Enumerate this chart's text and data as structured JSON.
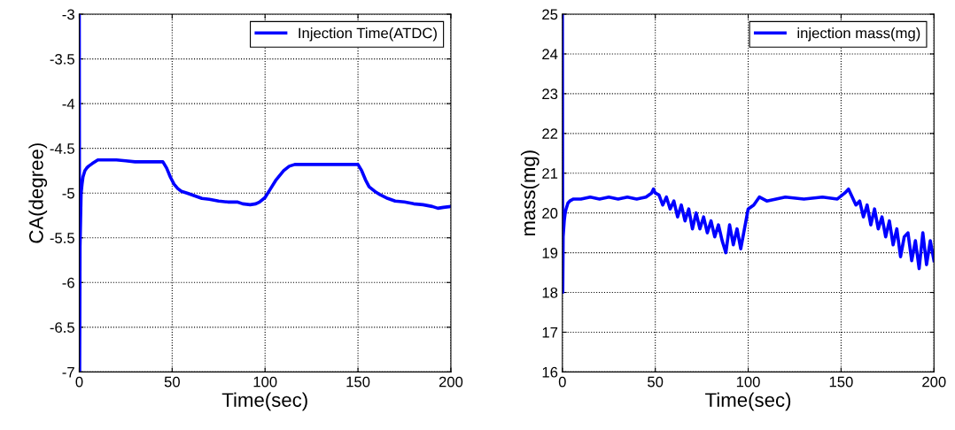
{
  "chart_data": [
    {
      "type": "line",
      "xlabel": "Time(sec)",
      "ylabel": "CA(degree)",
      "xlim": [
        0,
        200
      ],
      "xticks": [
        0,
        50,
        100,
        150,
        200
      ],
      "ylim": [
        -7,
        -3
      ],
      "yticks": [
        -7,
        -6.5,
        -6,
        -5.5,
        -5,
        -4.5,
        -4,
        -3.5,
        -3
      ],
      "grid": true,
      "legend": "top right",
      "series": [
        {
          "name": "Injection Time(ATDC)",
          "color": "#0000ff",
          "x": [
            0,
            0.2,
            0.4,
            0.7,
            1,
            1.5,
            2,
            3,
            4,
            5,
            7,
            10,
            15,
            20,
            25,
            30,
            35,
            40,
            45,
            47,
            49,
            51,
            53,
            55,
            58,
            62,
            66,
            70,
            75,
            80,
            85,
            88,
            92,
            95,
            97,
            100,
            103,
            106,
            110,
            113,
            116,
            120,
            130,
            140,
            150,
            152,
            154,
            156,
            159,
            162,
            166,
            170,
            175,
            180,
            185,
            190,
            193,
            196,
            200
          ],
          "values": [
            -3,
            -7,
            -5.6,
            -5.3,
            -5.0,
            -4.9,
            -4.82,
            -4.75,
            -4.72,
            -4.7,
            -4.67,
            -4.63,
            -4.63,
            -4.63,
            -4.64,
            -4.65,
            -4.65,
            -4.65,
            -4.65,
            -4.72,
            -4.82,
            -4.9,
            -4.95,
            -4.98,
            -5.0,
            -5.03,
            -5.06,
            -5.07,
            -5.09,
            -5.1,
            -5.1,
            -5.12,
            -5.13,
            -5.12,
            -5.1,
            -5.05,
            -4.95,
            -4.85,
            -4.75,
            -4.7,
            -4.68,
            -4.68,
            -4.68,
            -4.68,
            -4.68,
            -4.75,
            -4.85,
            -4.93,
            -4.98,
            -5.02,
            -5.06,
            -5.09,
            -5.1,
            -5.12,
            -5.13,
            -5.15,
            -5.17,
            -5.16,
            -5.15
          ]
        }
      ]
    },
    {
      "type": "line",
      "xlabel": "Time(sec)",
      "ylabel": "mass(mg)",
      "xlim": [
        0,
        200
      ],
      "xticks": [
        0,
        50,
        100,
        150,
        200
      ],
      "ylim": [
        16,
        25
      ],
      "yticks": [
        16,
        17,
        18,
        19,
        20,
        21,
        22,
        23,
        24,
        25
      ],
      "grid": true,
      "legend": "top right",
      "series": [
        {
          "name": "injection mass(mg)",
          "color": "#0000ff",
          "x": [
            0,
            0.2,
            0.4,
            0.7,
            1,
            1.5,
            2,
            3,
            4,
            6,
            10,
            15,
            20,
            25,
            30,
            35,
            40,
            45,
            48,
            49,
            50,
            52,
            54,
            56,
            58,
            60,
            62,
            64,
            66,
            68,
            70,
            72,
            74,
            76,
            78,
            80,
            82,
            84,
            86,
            88,
            90,
            92,
            94,
            96,
            98,
            100,
            103,
            106,
            110,
            115,
            120,
            130,
            140,
            148,
            152,
            154,
            156,
            158,
            160,
            162,
            164,
            166,
            168,
            170,
            172,
            174,
            176,
            178,
            180,
            182,
            184,
            186,
            188,
            190,
            192,
            194,
            196,
            198,
            200
          ],
          "values": [
            25,
            18,
            19.4,
            19.6,
            19.8,
            20.0,
            20.1,
            20.25,
            20.3,
            20.35,
            20.35,
            20.4,
            20.35,
            20.4,
            20.35,
            20.4,
            20.35,
            20.4,
            20.5,
            20.6,
            20.5,
            20.45,
            20.2,
            20.4,
            20.1,
            20.3,
            19.9,
            20.2,
            19.8,
            20.1,
            19.6,
            20.0,
            19.6,
            19.9,
            19.5,
            19.8,
            19.4,
            19.7,
            19.3,
            19.0,
            19.7,
            19.2,
            19.6,
            19.1,
            19.6,
            20.1,
            20.2,
            20.4,
            20.3,
            20.35,
            20.4,
            20.35,
            20.4,
            20.35,
            20.5,
            20.6,
            20.4,
            20.2,
            20.3,
            19.9,
            20.2,
            19.7,
            20.1,
            19.6,
            19.9,
            19.4,
            19.8,
            19.2,
            19.6,
            18.9,
            19.4,
            19.5,
            18.8,
            19.3,
            18.6,
            19.5,
            18.7,
            19.3,
            18.8
          ]
        }
      ]
    }
  ]
}
